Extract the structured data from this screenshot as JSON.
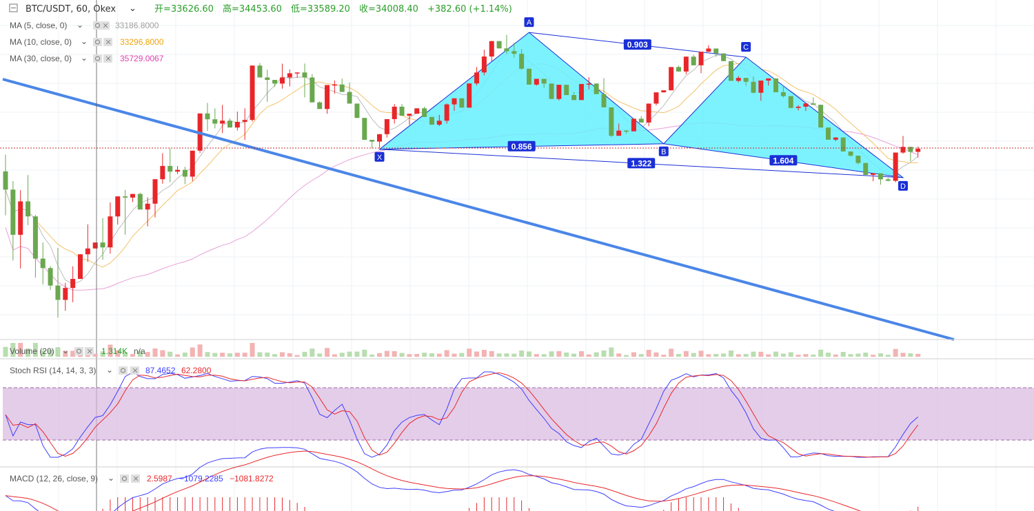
{
  "header": {
    "symbol": "BTC/USDT, 60, Okex",
    "open": "开=33626.60",
    "high": "高=34453.60",
    "low": "低=33589.20",
    "close": "收=34008.40",
    "change": "+382.60 (+1.14%)"
  },
  "indicators": {
    "ma5": {
      "label": "MA (5, close, 0)",
      "value": "33186.8000",
      "color": "#9e9e9e"
    },
    "ma10": {
      "label": "MA (10, close, 0)",
      "value": "33296.8000",
      "color": "#f0a30a"
    },
    "ma30": {
      "label": "MA (30, close, 0)",
      "value": "35729.0067",
      "color": "#e040b0"
    },
    "volume": {
      "label": "Volume (20)",
      "value": "1.314K",
      "value2": "n/a"
    },
    "stoch": {
      "label": "Stoch RSI (14, 14, 3, 3)",
      "k": "87.4652",
      "d": "62.2800"
    },
    "macd": {
      "label": "MACD (12, 26, close, 9)",
      "hist": "2.5987",
      "macd": "−1079.2285",
      "signal": "−1081.8272"
    }
  },
  "colors": {
    "up": "#e8262a",
    "down": "#6aa84f",
    "pattern_fill": "#66f0ff",
    "pattern_line": "#1a2fd6",
    "trend": "#4a86e8",
    "stoch_k": "#3d3dff",
    "stoch_d": "#e8262a",
    "band": "#d9b8e0"
  },
  "chart_data": {
    "type": "candlestick",
    "ohlc": [
      [
        33426,
        33550,
        33101,
        33291
      ],
      [
        33291,
        33354,
        32767,
        32957
      ],
      [
        32957,
        33287,
        32708,
        33204
      ],
      [
        33204,
        33399,
        33028,
        33093
      ],
      [
        33093,
        33104,
        32640,
        32781
      ],
      [
        32781,
        32900,
        32590,
        32711
      ],
      [
        32711,
        32725,
        32549,
        32582
      ],
      [
        32582,
        32860,
        32345,
        32476
      ],
      [
        32476,
        32602,
        32395,
        32564
      ],
      [
        32564,
        32724,
        32459,
        32631
      ],
      [
        32631,
        32676,
        32633,
        32813
      ],
      [
        32813,
        33034,
        32757,
        32856
      ],
      [
        32856,
        32876,
        32856,
        32900
      ],
      [
        32900,
        33080,
        32772,
        32864
      ],
      [
        32864,
        33197,
        32818,
        33093
      ],
      [
        33093,
        33083,
        33032,
        33241
      ],
      [
        33241,
        33289,
        32958,
        33232
      ],
      [
        33232,
        33252,
        33199,
        33259
      ],
      [
        33259,
        33268,
        33184,
        33144
      ],
      [
        33144,
        33234,
        33019,
        33187
      ],
      [
        33187,
        33218,
        33085,
        33368
      ],
      [
        33368,
        33560,
        33335,
        33466
      ],
      [
        33466,
        33595,
        33346,
        33424
      ],
      [
        33424,
        33466,
        33406,
        33437
      ],
      [
        33437,
        33460,
        33331,
        33387
      ],
      [
        33387,
        33552,
        33354,
        33579
      ],
      [
        33579,
        33808,
        33562,
        33854
      ],
      [
        33854,
        33932,
        33724,
        33811
      ],
      [
        33811,
        33891,
        33744,
        33779
      ],
      [
        33779,
        33917,
        33709,
        33801
      ],
      [
        33801,
        33818,
        33771,
        33750
      ],
      [
        33750,
        33868,
        33728,
        33792
      ],
      [
        33792,
        33892,
        33659,
        33806
      ],
      [
        33806,
        33895,
        33794,
        34208
      ],
      [
        34208,
        34227,
        34192,
        34120
      ],
      [
        34120,
        34178,
        33939,
        34102
      ],
      [
        34102,
        34093,
        34050,
        34075
      ],
      [
        34075,
        34222,
        34037,
        34120
      ],
      [
        34120,
        34180,
        34054,
        34151
      ],
      [
        34151,
        34131,
        34117,
        34157
      ],
      [
        34157,
        34223,
        33973,
        34120
      ],
      [
        34120,
        34145,
        34033,
        33936
      ],
      [
        33936,
        33944,
        33911,
        33887
      ],
      [
        33887,
        34050,
        33852,
        34064
      ],
      [
        34064,
        34098,
        34000,
        34068
      ],
      [
        34068,
        34112,
        34020,
        34013
      ],
      [
        34013,
        34083,
        33973,
        33927
      ],
      [
        33927,
        33917,
        33867,
        33821
      ],
      [
        33821,
        33817,
        33755,
        33659
      ],
      [
        33659,
        33629,
        33596,
        33646
      ],
      [
        33646,
        33655,
        33598,
        33701
      ],
      [
        33701,
        33783,
        33676,
        33812
      ],
      [
        33812,
        33924,
        33779,
        33904
      ],
      [
        33904,
        33923,
        33889,
        33837
      ],
      [
        33837,
        33851,
        33770,
        33852
      ],
      [
        33852,
        33869,
        33855,
        33892
      ],
      [
        33892,
        33904,
        33834,
        33828
      ],
      [
        33828,
        33815,
        33779,
        33771
      ],
      [
        33771,
        33844,
        33761,
        33800
      ],
      [
        33800,
        33928,
        33779,
        33921
      ],
      [
        33921,
        33903,
        33873,
        33966
      ],
      [
        33966,
        33957,
        33933,
        33897
      ],
      [
        33897,
        34031,
        33910,
        34076
      ],
      [
        34076,
        34197,
        34061,
        34157
      ],
      [
        34157,
        34325,
        34136,
        34275
      ],
      [
        34275,
        34311,
        34239,
        34389
      ],
      [
        34389,
        34388,
        34367,
        34335
      ],
      [
        34335,
        34435,
        34295,
        34314
      ],
      [
        34314,
        34377,
        34266,
        34295
      ],
      [
        34295,
        34330,
        34177,
        34185
      ],
      [
        34185,
        34178,
        34154,
        34067
      ],
      [
        34067,
        34051,
        34060,
        34110
      ],
      [
        34110,
        34050,
        34044,
        34075
      ],
      [
        34075,
        34065,
        34020,
        33961
      ],
      [
        33961,
        34050,
        33950,
        34066
      ],
      [
        34066,
        34062,
        34016,
        33990
      ],
      [
        33990,
        34013,
        33960,
        33953
      ],
      [
        33953,
        34015,
        33969,
        34072
      ],
      [
        34072,
        34122,
        34033,
        34075
      ],
      [
        34075,
        34072,
        34012,
        33997
      ],
      [
        33997,
        34115,
        33922,
        33899
      ],
      [
        33899,
        33817,
        33679,
        33689
      ],
      [
        33689,
        33779,
        33700,
        33727
      ],
      [
        33727,
        33730,
        33704,
        33722
      ],
      [
        33722,
        33750,
        33731,
        33815
      ],
      [
        33815,
        33834,
        33792,
        33787
      ],
      [
        33787,
        33884,
        33760,
        33927
      ],
      [
        33927,
        33947,
        33913,
        34010
      ],
      [
        34010,
        34024,
        34008,
        34025
      ],
      [
        34025,
        34165,
        34027,
        34197
      ],
      [
        34197,
        34208,
        34166,
        34164
      ],
      [
        34164,
        34234,
        34144,
        34274
      ],
      [
        34274,
        34287,
        34249,
        34210
      ],
      [
        34210,
        34310,
        34152,
        34310
      ],
      [
        34310,
        34358,
        34316,
        34334
      ],
      [
        34334,
        34304,
        34273,
        34298
      ],
      [
        34298,
        34269,
        34262,
        34241
      ],
      [
        34241,
        34200,
        34168,
        34095
      ],
      [
        34095,
        34131,
        34085,
        34117
      ],
      [
        34117,
        34103,
        34059,
        34088
      ],
      [
        34088,
        34129,
        34003,
        34007
      ],
      [
        34007,
        34025,
        33948,
        34097
      ],
      [
        34097,
        34112,
        34060,
        34113
      ],
      [
        34113,
        34087,
        34031,
        34011
      ],
      [
        34011,
        34063,
        33972,
        33982
      ],
      [
        33982,
        33934,
        33892,
        33895
      ],
      [
        33895,
        33915,
        33877,
        33904
      ],
      [
        33904,
        33929,
        33873,
        33928
      ],
      [
        33928,
        33972,
        33925,
        33918
      ],
      [
        33918,
        33914,
        33870,
        33750
      ],
      [
        33750,
        33715,
        33728,
        33660
      ],
      [
        33660,
        33679,
        33648,
        33676
      ],
      [
        33676,
        33678,
        33654,
        33573
      ],
      [
        33573,
        33562,
        33534,
        33542
      ],
      [
        33542,
        33483,
        33477,
        33488
      ],
      [
        33488,
        33401,
        33403,
        33400
      ],
      [
        33400,
        33377,
        33353,
        33412
      ],
      [
        33412,
        33394,
        33327,
        33367
      ],
      [
        33367,
        33379,
        33353,
        33356
      ],
      [
        33356,
        33332,
        33346,
        33565
      ],
      [
        33565,
        33688,
        33556,
        33607
      ],
      [
        33607,
        33595,
        33501,
        33570
      ],
      [
        33570,
        33610,
        33528,
        33593
      ]
    ],
    "ylim": [
      32300,
      34540
    ],
    "pattern": {
      "points": [
        {
          "label": "X",
          "price": 33589
        },
        {
          "label": "A",
          "price": 34453
        },
        {
          "label": "B",
          "price": 33630
        },
        {
          "label": "C",
          "price": 34270
        },
        {
          "label": "D",
          "price": 33380
        }
      ],
      "ratios": [
        "0.903",
        "0.856",
        "1.322",
        "1.604"
      ]
    }
  }
}
